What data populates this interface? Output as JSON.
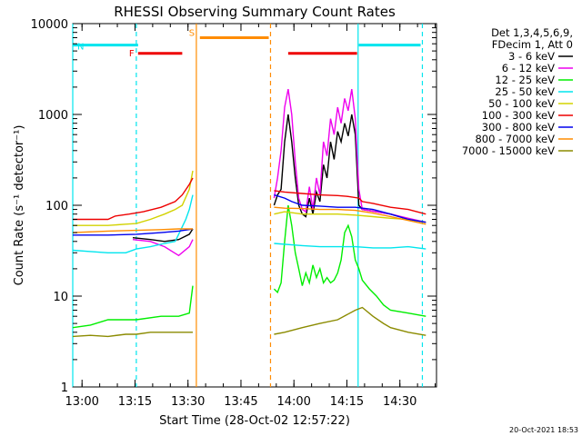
{
  "chart_data": {
    "type": "line",
    "title": "RHESSI Observing Summary Count Rates",
    "xlabel": "Start Time (28-Oct-02 12:57:22)",
    "ylabel": "Count Rate (s⁻¹ detector⁻¹)",
    "y_scale": "log",
    "ylim": [
      1,
      10000
    ],
    "xlim_minutes_after_start": [
      0,
      103
    ],
    "x_ticks": [
      "13:00",
      "13:15",
      "13:30",
      "13:45",
      "14:00",
      "14:15",
      "14:30"
    ],
    "x_tick_minutes": [
      2.63,
      17.63,
      32.63,
      47.63,
      62.63,
      77.63,
      92.63
    ],
    "y_ticks": [
      "1",
      "10",
      "100",
      "1000",
      "10000"
    ],
    "y_tick_values": [
      1,
      10,
      100,
      1000,
      10000
    ],
    "legend_header": [
      "Det 1,3,4,5,6,9,",
      "FDecim 1, Att 0"
    ],
    "legend_position": "right",
    "timestamp": "20-Oct-2021 18:53",
    "flags": [
      {
        "label": "N",
        "color": "#00e5ee",
        "y": 5800,
        "segments": [
          [
            0,
            18.5
          ],
          [
            81,
            98.5
          ]
        ]
      },
      {
        "label": "F",
        "color": "#ee0000",
        "y": 4700,
        "segments": [
          [
            18.5,
            31
          ],
          [
            61,
            80.5
          ]
        ]
      },
      {
        "label": "S",
        "color": "#ff8c00",
        "y": 7000,
        "segments": [
          [
            36,
            55.5
          ]
        ]
      }
    ],
    "markers": [
      {
        "minute": 0,
        "color": "#00e5ee",
        "style": "solid"
      },
      {
        "minute": 18,
        "color": "#00e5ee",
        "style": "dashed"
      },
      {
        "minute": 35,
        "color": "#ff8c00",
        "style": "solid"
      },
      {
        "minute": 56,
        "color": "#ff8c00",
        "style": "dashed"
      },
      {
        "minute": 80.8,
        "color": "#00e5ee",
        "style": "solid"
      },
      {
        "minute": 99,
        "color": "#00e5ee",
        "style": "dashed"
      }
    ],
    "series": [
      {
        "name": "3 - 6 keV",
        "color": "#000000",
        "points": [
          [
            0,
            46
          ],
          [
            17,
            44
          ],
          [
            22,
            42
          ],
          [
            26,
            40
          ],
          [
            30,
            42
          ],
          [
            33,
            48
          ],
          [
            34,
            55
          ],
          [
            57,
            100
          ],
          [
            58,
            130
          ],
          [
            59,
            150
          ],
          [
            60,
            500
          ],
          [
            61,
            1000
          ],
          [
            62,
            500
          ],
          [
            63,
            200
          ],
          [
            64,
            100
          ],
          [
            65,
            80
          ],
          [
            66,
            75
          ],
          [
            67,
            120
          ],
          [
            68,
            80
          ],
          [
            69,
            140
          ],
          [
            70,
            110
          ],
          [
            71,
            280
          ],
          [
            72,
            200
          ],
          [
            73,
            500
          ],
          [
            74,
            320
          ],
          [
            75,
            650
          ],
          [
            76,
            500
          ],
          [
            77,
            800
          ],
          [
            78,
            580
          ],
          [
            79,
            1000
          ],
          [
            80,
            600
          ],
          [
            81,
            100
          ],
          [
            82,
            90
          ],
          [
            90,
            80
          ],
          [
            95,
            70
          ],
          [
            100,
            65
          ]
        ]
      },
      {
        "name": "6 - 12 keV",
        "color": "#ee00ee",
        "points": [
          [
            0,
            45
          ],
          [
            17,
            42
          ],
          [
            22,
            40
          ],
          [
            26,
            35
          ],
          [
            30,
            28
          ],
          [
            33,
            35
          ],
          [
            34,
            42
          ],
          [
            57,
            120
          ],
          [
            58,
            200
          ],
          [
            59,
            400
          ],
          [
            60,
            1200
          ],
          [
            61,
            1900
          ],
          [
            62,
            1000
          ],
          [
            63,
            300
          ],
          [
            64,
            120
          ],
          [
            65,
            90
          ],
          [
            66,
            85
          ],
          [
            67,
            160
          ],
          [
            68,
            90
          ],
          [
            69,
            200
          ],
          [
            70,
            130
          ],
          [
            71,
            500
          ],
          [
            72,
            350
          ],
          [
            73,
            900
          ],
          [
            74,
            600
          ],
          [
            75,
            1200
          ],
          [
            76,
            800
          ],
          [
            77,
            1500
          ],
          [
            78,
            1100
          ],
          [
            79,
            1900
          ],
          [
            80,
            900
          ],
          [
            81,
            150
          ],
          [
            82,
            90
          ],
          [
            90,
            80
          ],
          [
            95,
            72
          ],
          [
            100,
            65
          ]
        ]
      },
      {
        "name": "12 - 25 keV",
        "color": "#00ee00",
        "points": [
          [
            0,
            4.5
          ],
          [
            5,
            4.8
          ],
          [
            10,
            5.5
          ],
          [
            15,
            5.5
          ],
          [
            18,
            5.5
          ],
          [
            25,
            6
          ],
          [
            30,
            6
          ],
          [
            33,
            6.5
          ],
          [
            34,
            13
          ],
          [
            57,
            12
          ],
          [
            58,
            11
          ],
          [
            59,
            14
          ],
          [
            60,
            40
          ],
          [
            61,
            100
          ],
          [
            62,
            60
          ],
          [
            63,
            30
          ],
          [
            64,
            20
          ],
          [
            65,
            13
          ],
          [
            66,
            18
          ],
          [
            67,
            14
          ],
          [
            68,
            22
          ],
          [
            69,
            16
          ],
          [
            70,
            20
          ],
          [
            71,
            14
          ],
          [
            72,
            16
          ],
          [
            73,
            14
          ],
          [
            74,
            15
          ],
          [
            75,
            18
          ],
          [
            76,
            25
          ],
          [
            77,
            50
          ],
          [
            78,
            60
          ],
          [
            79,
            45
          ],
          [
            80,
            25
          ],
          [
            81,
            20
          ],
          [
            82,
            15
          ],
          [
            84,
            12
          ],
          [
            86,
            10
          ],
          [
            88,
            8
          ],
          [
            90,
            7
          ],
          [
            95,
            6.5
          ],
          [
            100,
            6
          ]
        ]
      },
      {
        "name": "25 - 50 keV",
        "color": "#00e5ee",
        "points": [
          [
            0,
            32
          ],
          [
            5,
            31
          ],
          [
            10,
            30
          ],
          [
            15,
            30
          ],
          [
            18,
            33
          ],
          [
            22,
            35
          ],
          [
            26,
            38
          ],
          [
            29,
            40
          ],
          [
            30,
            48
          ],
          [
            31,
            58
          ],
          [
            32,
            70
          ],
          [
            33,
            90
          ],
          [
            34,
            130
          ],
          [
            57,
            38
          ],
          [
            65,
            36
          ],
          [
            70,
            35
          ],
          [
            75,
            35
          ],
          [
            80,
            35
          ],
          [
            85,
            34
          ],
          [
            90,
            34
          ],
          [
            95,
            35
          ],
          [
            100,
            33
          ]
        ]
      },
      {
        "name": "50 - 100 keV",
        "color": "#d2d200",
        "points": [
          [
            0,
            60
          ],
          [
            5,
            60
          ],
          [
            10,
            60
          ],
          [
            15,
            62
          ],
          [
            18,
            63
          ],
          [
            22,
            70
          ],
          [
            26,
            80
          ],
          [
            29,
            90
          ],
          [
            31,
            100
          ],
          [
            33,
            150
          ],
          [
            34,
            240
          ],
          [
            57,
            80
          ],
          [
            60,
            85
          ],
          [
            65,
            80
          ],
          [
            70,
            80
          ],
          [
            75,
            80
          ],
          [
            80,
            78
          ],
          [
            85,
            75
          ],
          [
            90,
            72
          ],
          [
            95,
            70
          ],
          [
            100,
            65
          ]
        ]
      },
      {
        "name": "100 - 300 keV",
        "color": "#ee0000",
        "points": [
          [
            0,
            70
          ],
          [
            5,
            70
          ],
          [
            10,
            70
          ],
          [
            12,
            76
          ],
          [
            16,
            80
          ],
          [
            20,
            85
          ],
          [
            25,
            95
          ],
          [
            29,
            110
          ],
          [
            31,
            130
          ],
          [
            33,
            170
          ],
          [
            34,
            200
          ],
          [
            57,
            145
          ],
          [
            60,
            140
          ],
          [
            65,
            135
          ],
          [
            70,
            130
          ],
          [
            75,
            128
          ],
          [
            78,
            125
          ],
          [
            81,
            120
          ],
          [
            82,
            110
          ],
          [
            85,
            105
          ],
          [
            90,
            95
          ],
          [
            95,
            90
          ],
          [
            100,
            80
          ]
        ]
      },
      {
        "name": "300 - 800 keV",
        "color": "#0000ee",
        "points": [
          [
            0,
            47
          ],
          [
            10,
            47
          ],
          [
            18,
            48
          ],
          [
            25,
            50
          ],
          [
            30,
            52
          ],
          [
            34,
            55
          ],
          [
            57,
            130
          ],
          [
            60,
            120
          ],
          [
            62,
            110
          ],
          [
            65,
            100
          ],
          [
            70,
            98
          ],
          [
            75,
            95
          ],
          [
            80,
            95
          ],
          [
            85,
            90
          ],
          [
            90,
            80
          ],
          [
            95,
            70
          ],
          [
            100,
            65
          ]
        ]
      },
      {
        "name": "800 - 7000 keV",
        "color": "#ff8c00",
        "points": [
          [
            0,
            50
          ],
          [
            10,
            52
          ],
          [
            18,
            53
          ],
          [
            25,
            54
          ],
          [
            30,
            55
          ],
          [
            34,
            55
          ],
          [
            57,
            95
          ],
          [
            60,
            93
          ],
          [
            65,
            92
          ],
          [
            70,
            90
          ],
          [
            75,
            90
          ],
          [
            80,
            88
          ],
          [
            85,
            82
          ],
          [
            90,
            75
          ],
          [
            95,
            68
          ],
          [
            100,
            62
          ]
        ]
      },
      {
        "name": "7000 - 15000 keV",
        "color": "#8b8b00",
        "points": [
          [
            0,
            3.6
          ],
          [
            5,
            3.7
          ],
          [
            10,
            3.6
          ],
          [
            15,
            3.8
          ],
          [
            18,
            3.8
          ],
          [
            22,
            4
          ],
          [
            26,
            4
          ],
          [
            30,
            4
          ],
          [
            34,
            4
          ],
          [
            57,
            3.8
          ],
          [
            60,
            4
          ],
          [
            65,
            4.5
          ],
          [
            70,
            5
          ],
          [
            75,
            5.5
          ],
          [
            80,
            7
          ],
          [
            82,
            7.5
          ],
          [
            85,
            6
          ],
          [
            88,
            5
          ],
          [
            90,
            4.5
          ],
          [
            95,
            4
          ],
          [
            100,
            3.7
          ]
        ]
      }
    ]
  }
}
